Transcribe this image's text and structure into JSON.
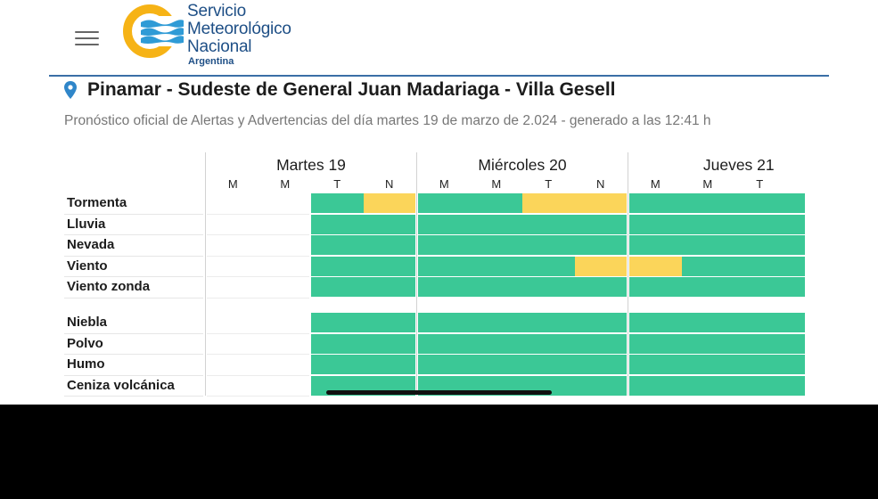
{
  "header": {
    "menu_icon": "hamburger-menu-icon",
    "logo": {
      "line1": "Servicio",
      "line2": "Meteorológico",
      "line3": "Nacional",
      "country": "Argentina",
      "colors": {
        "ring": "#f6b316",
        "waves": "#2f9bd6",
        "text": "#1e4f86"
      }
    }
  },
  "location": {
    "icon": "map-pin-icon",
    "title": "Pinamar - Sudeste de General Juan Madariaga - Villa Gesell"
  },
  "forecast_info": "Pronóstico oficial de Alertas y Advertencias del día martes 19 de marzo de 2.024 - generado a las 12:41 h",
  "colors": {
    "no_alert": "#3bc896",
    "yellow_alert": "#fbd55a",
    "accent": "#3a6fa6"
  },
  "days": [
    {
      "label": "Martes 19",
      "periods": [
        "M",
        "M",
        "T",
        "N"
      ]
    },
    {
      "label": "Miércoles 20",
      "periods": [
        "M",
        "M",
        "T",
        "N"
      ]
    },
    {
      "label": "Jueves 21",
      "periods": [
        "M",
        "M",
        "T"
      ]
    }
  ],
  "phenomena_groups": [
    [
      {
        "label": "Tormenta",
        "levels": [
          null,
          null,
          "green",
          "yellow",
          "green",
          "green",
          "yellow",
          "yellow",
          "green",
          "green",
          "green"
        ]
      },
      {
        "label": "Lluvia",
        "levels": [
          null,
          null,
          "green",
          "green",
          "green",
          "green",
          "green",
          "green",
          "green",
          "green",
          "green"
        ]
      },
      {
        "label": "Nevada",
        "levels": [
          null,
          null,
          "green",
          "green",
          "green",
          "green",
          "green",
          "green",
          "green",
          "green",
          "green"
        ]
      },
      {
        "label": "Viento",
        "levels": [
          null,
          null,
          "green",
          "green",
          "green",
          "green",
          "green",
          "yellow",
          "yellow",
          "green",
          "green"
        ]
      },
      {
        "label": "Viento zonda",
        "levels": [
          null,
          null,
          "green",
          "green",
          "green",
          "green",
          "green",
          "green",
          "green",
          "green",
          "green"
        ]
      }
    ],
    [
      {
        "label": "Niebla",
        "levels": [
          null,
          null,
          "green",
          "green",
          "green",
          "green",
          "green",
          "green",
          "green",
          "green",
          "green"
        ]
      },
      {
        "label": "Polvo",
        "levels": [
          null,
          null,
          "green",
          "green",
          "green",
          "green",
          "green",
          "green",
          "green",
          "green",
          "green"
        ]
      },
      {
        "label": "Humo",
        "levels": [
          null,
          null,
          "green",
          "green",
          "green",
          "green",
          "green",
          "green",
          "green",
          "green",
          "green"
        ]
      },
      {
        "label": "Ceniza volcánica",
        "levels": [
          null,
          null,
          "green",
          "green",
          "green",
          "green",
          "green",
          "green",
          "green",
          "green",
          "green"
        ]
      }
    ]
  ]
}
